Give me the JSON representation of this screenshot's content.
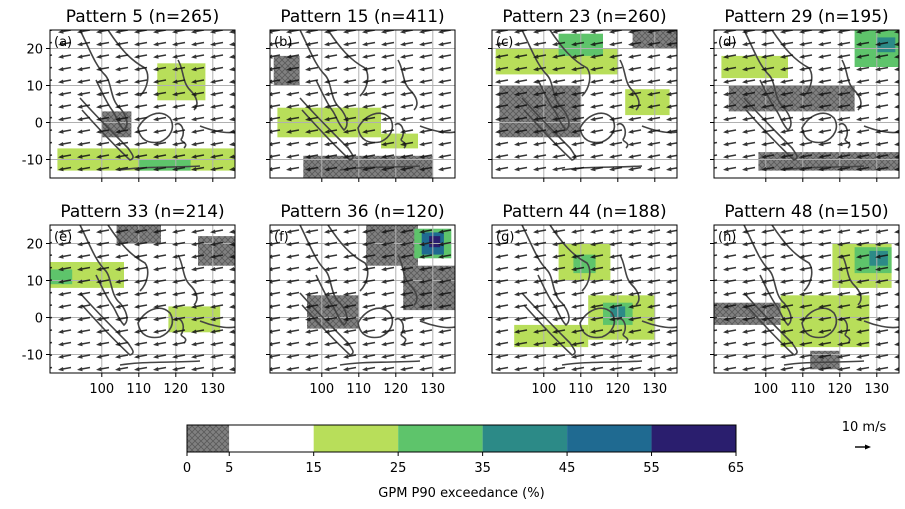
{
  "chart_data": [
    {
      "type": "map",
      "title": "Pattern 5 (n=265)",
      "label": "(a)",
      "xlim": [
        86,
        136
      ],
      "ylim": [
        -15,
        25
      ],
      "xticks": [
        100,
        110,
        120,
        130
      ],
      "yticks": [
        -10,
        0,
        10,
        20
      ],
      "regions": [
        {
          "lon": [
            115,
            128
          ],
          "lat": [
            6,
            16
          ],
          "value": 20
        },
        {
          "lon": [
            88,
            136
          ],
          "lat": [
            -13,
            -7
          ],
          "value": 20
        },
        {
          "lon": [
            110,
            124
          ],
          "lat": [
            -13,
            -10
          ],
          "value": 30
        },
        {
          "lon": [
            100,
            108
          ],
          "lat": [
            -4,
            3
          ],
          "value": 3
        }
      ]
    },
    {
      "type": "map",
      "title": "Pattern 15 (n=411)",
      "label": "(b)",
      "xlim": [
        86,
        136
      ],
      "ylim": [
        -15,
        25
      ],
      "xticks": [
        100,
        110,
        120,
        130
      ],
      "yticks": [
        -10,
        0,
        10,
        20
      ],
      "regions": [
        {
          "lon": [
            87,
            94
          ],
          "lat": [
            10,
            18
          ],
          "value": 3
        },
        {
          "lon": [
            88,
            116
          ],
          "lat": [
            -4,
            4
          ],
          "value": 20
        },
        {
          "lon": [
            116,
            126
          ],
          "lat": [
            -7,
            -3
          ],
          "value": 20
        },
        {
          "lon": [
            95,
            130
          ],
          "lat": [
            -15,
            -9
          ],
          "value": 3
        }
      ]
    },
    {
      "type": "map",
      "title": "Pattern 23 (n=260)",
      "label": "(c)",
      "xlim": [
        86,
        136
      ],
      "ylim": [
        -15,
        25
      ],
      "xticks": [
        100,
        110,
        120,
        130
      ],
      "yticks": [
        -10,
        0,
        10,
        20
      ],
      "regions": [
        {
          "lon": [
            87,
            120
          ],
          "lat": [
            13,
            20
          ],
          "value": 20
        },
        {
          "lon": [
            104,
            116
          ],
          "lat": [
            18,
            24
          ],
          "value": 30
        },
        {
          "lon": [
            122,
            134
          ],
          "lat": [
            2,
            9
          ],
          "value": 20
        },
        {
          "lon": [
            88,
            110
          ],
          "lat": [
            -4,
            10
          ],
          "value": 3
        },
        {
          "lon": [
            124,
            136
          ],
          "lat": [
            20,
            25
          ],
          "value": 3
        }
      ]
    },
    {
      "type": "map",
      "title": "Pattern 29 (n=195)",
      "label": "(d)",
      "xlim": [
        86,
        136
      ],
      "ylim": [
        -15,
        25
      ],
      "xticks": [
        100,
        110,
        120,
        130
      ],
      "yticks": [
        -10,
        0,
        10,
        20
      ],
      "regions": [
        {
          "lon": [
            88,
            106
          ],
          "lat": [
            12,
            18
          ],
          "value": 20
        },
        {
          "lon": [
            124,
            136
          ],
          "lat": [
            15,
            25
          ],
          "value": 30
        },
        {
          "lon": [
            130,
            135
          ],
          "lat": [
            19,
            23
          ],
          "value": 40
        },
        {
          "lon": [
            90,
            124
          ],
          "lat": [
            3,
            10
          ],
          "value": 3
        },
        {
          "lon": [
            98,
            136
          ],
          "lat": [
            -13,
            -8
          ],
          "value": 3
        }
      ]
    },
    {
      "type": "map",
      "title": "Pattern 33 (n=214)",
      "label": "(e)",
      "xlim": [
        86,
        136
      ],
      "ylim": [
        -15,
        25
      ],
      "xticks": [
        100,
        110,
        120,
        130
      ],
      "yticks": [
        -10,
        0,
        10,
        20
      ],
      "regions": [
        {
          "lon": [
            86,
            106
          ],
          "lat": [
            8,
            15
          ],
          "value": 20
        },
        {
          "lon": [
            86,
            92
          ],
          "lat": [
            9,
            13
          ],
          "value": 30
        },
        {
          "lon": [
            126,
            136
          ],
          "lat": [
            14,
            22
          ],
          "value": 3
        },
        {
          "lon": [
            118,
            132
          ],
          "lat": [
            -4,
            3
          ],
          "value": 20
        },
        {
          "lon": [
            104,
            116
          ],
          "lat": [
            20,
            25
          ],
          "value": 3
        }
      ]
    },
    {
      "type": "map",
      "title": "Pattern 36 (n=120)",
      "label": "(f)",
      "xlim": [
        86,
        136
      ],
      "ylim": [
        -15,
        25
      ],
      "xticks": [
        100,
        110,
        120,
        130
      ],
      "yticks": [
        -10,
        0,
        10,
        20
      ],
      "regions": [
        {
          "lon": [
            112,
            126
          ],
          "lat": [
            14,
            25
          ],
          "value": 3
        },
        {
          "lon": [
            122,
            136
          ],
          "lat": [
            2,
            14
          ],
          "value": 3
        },
        {
          "lon": [
            96,
            110
          ],
          "lat": [
            -3,
            6
          ],
          "value": 3
        },
        {
          "lon": [
            125,
            135
          ],
          "lat": [
            16,
            24
          ],
          "value": 30
        },
        {
          "lon": [
            127,
            133
          ],
          "lat": [
            17,
            23
          ],
          "value": 50
        },
        {
          "lon": [
            129,
            132
          ],
          "lat": [
            19,
            22
          ],
          "value": 60
        }
      ]
    },
    {
      "type": "map",
      "title": "Pattern 44 (n=188)",
      "label": "(g)",
      "xlim": [
        86,
        136
      ],
      "ylim": [
        -15,
        25
      ],
      "xticks": [
        100,
        110,
        120,
        130
      ],
      "yticks": [
        -10,
        0,
        10,
        20
      ],
      "regions": [
        {
          "lon": [
            104,
            118
          ],
          "lat": [
            10,
            20
          ],
          "value": 20
        },
        {
          "lon": [
            108,
            114
          ],
          "lat": [
            12,
            17
          ],
          "value": 30
        },
        {
          "lon": [
            112,
            130
          ],
          "lat": [
            -6,
            6
          ],
          "value": 20
        },
        {
          "lon": [
            116,
            124
          ],
          "lat": [
            -2,
            4
          ],
          "value": 30
        },
        {
          "lon": [
            118,
            122
          ],
          "lat": [
            0,
            3
          ],
          "value": 40
        },
        {
          "lon": [
            92,
            112
          ],
          "lat": [
            -8,
            -2
          ],
          "value": 20
        }
      ]
    },
    {
      "type": "map",
      "title": "Pattern 48 (n=150)",
      "label": "(h)",
      "xlim": [
        86,
        136
      ],
      "ylim": [
        -15,
        25
      ],
      "xticks": [
        100,
        110,
        120,
        130
      ],
      "yticks": [
        -10,
        0,
        10,
        20
      ],
      "regions": [
        {
          "lon": [
            118,
            134
          ],
          "lat": [
            8,
            20
          ],
          "value": 20
        },
        {
          "lon": [
            124,
            134
          ],
          "lat": [
            12,
            19
          ],
          "value": 30
        },
        {
          "lon": [
            128,
            133
          ],
          "lat": [
            14,
            18
          ],
          "value": 40
        },
        {
          "lon": [
            104,
            128
          ],
          "lat": [
            -8,
            6
          ],
          "value": 20
        },
        {
          "lon": [
            86,
            104
          ],
          "lat": [
            -2,
            4
          ],
          "value": 3
        },
        {
          "lon": [
            112,
            120
          ],
          "lat": [
            -14,
            -9
          ],
          "value": 3
        }
      ]
    }
  ],
  "colorbar": {
    "bounds": [
      0,
      5,
      15,
      25,
      35,
      45,
      55,
      65
    ],
    "colors": [
      "#808080",
      "#ffffff",
      "#b8de5a",
      "#5ec46b",
      "#2c8a87",
      "#1f6a91",
      "#2a1e6e"
    ],
    "label": "GPM P90 exceedance (%)"
  },
  "quiver_key": {
    "label": "10 m/s"
  }
}
